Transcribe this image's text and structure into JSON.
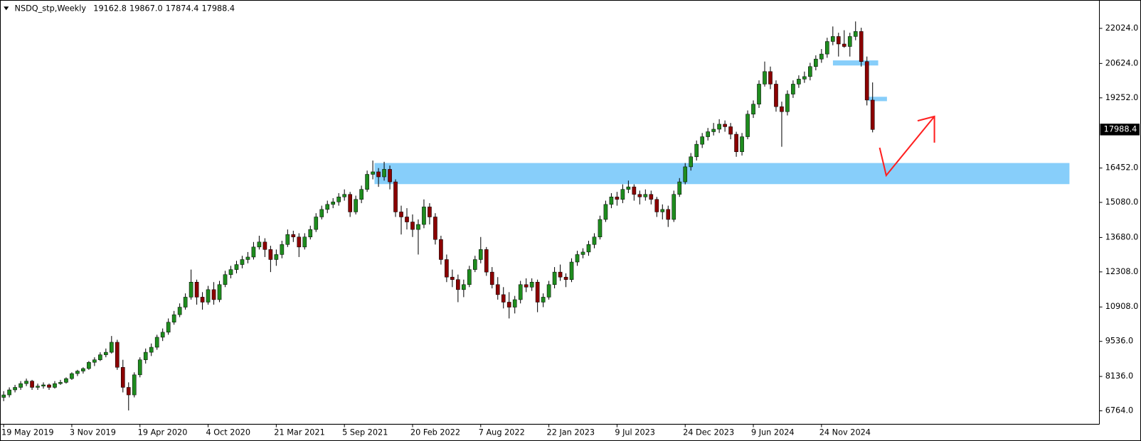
{
  "chart_data": {
    "type": "candlestick",
    "title": "NSDQ_stp,Weekly",
    "last_bar_labels": [
      "19162.8",
      "19867.0",
      "17874.4",
      "17988.4"
    ],
    "bull_color": "#1e8c1e",
    "bear_color": "#8b0000",
    "wick_color": "#000000",
    "ylim": [
      6228,
      23156
    ],
    "yticks": [
      {
        "value": 22024,
        "label": "22024.0"
      },
      {
        "value": 20624,
        "label": "20624.0"
      },
      {
        "value": 19252,
        "label": "19252.0"
      },
      {
        "value": 16452,
        "label": "16452.0"
      },
      {
        "value": 15080,
        "label": "15080.0"
      },
      {
        "value": 13680,
        "label": "13680.0"
      },
      {
        "value": 12308,
        "label": "12308.0"
      },
      {
        "value": 10908,
        "label": "10908.0"
      },
      {
        "value": 9536,
        "label": "9536.0"
      },
      {
        "value": 8136,
        "label": "8136.0"
      },
      {
        "value": 6764,
        "label": "6764.0"
      }
    ],
    "categories": [
      "19 May 2019",
      null,
      null,
      null,
      null,
      null,
      null,
      null,
      null,
      null,
      null,
      null,
      "3 Nov 2019",
      null,
      null,
      null,
      null,
      null,
      null,
      null,
      null,
      null,
      null,
      null,
      "19 Apr 2020",
      null,
      null,
      null,
      null,
      null,
      null,
      null,
      null,
      null,
      null,
      null,
      "4 Oct 2020",
      null,
      null,
      null,
      null,
      null,
      null,
      null,
      null,
      null,
      null,
      null,
      "21 Mar 2021",
      null,
      null,
      null,
      null,
      null,
      null,
      null,
      null,
      null,
      null,
      null,
      "5 Sep 2021",
      null,
      null,
      null,
      null,
      null,
      null,
      null,
      null,
      null,
      null,
      null,
      "20 Feb 2022",
      null,
      null,
      null,
      null,
      null,
      null,
      null,
      null,
      null,
      null,
      null,
      "7 Aug 2022",
      null,
      null,
      null,
      null,
      null,
      null,
      null,
      null,
      null,
      null,
      null,
      "22 Jan 2023",
      null,
      null,
      null,
      null,
      null,
      null,
      null,
      null,
      null,
      null,
      null,
      "9 Jul 2023",
      null,
      null,
      null,
      null,
      null,
      null,
      null,
      null,
      null,
      null,
      null,
      "24 Dec 2023",
      null,
      null,
      null,
      null,
      null,
      null,
      null,
      null,
      null,
      null,
      null,
      "9 Jun 2024",
      null,
      null,
      null,
      null,
      null,
      null,
      null,
      null,
      null,
      null,
      null,
      "24 Nov 2024",
      null,
      null,
      null,
      null,
      null,
      null,
      null,
      null,
      null
    ],
    "ohlc": [
      [
        7300,
        7550,
        7150,
        7400
      ],
      [
        7400,
        7700,
        7300,
        7600
      ],
      [
        7600,
        7800,
        7500,
        7700
      ],
      [
        7700,
        7950,
        7600,
        7850
      ],
      [
        7850,
        8050,
        7750,
        7950
      ],
      [
        7950,
        8000,
        7600,
        7700
      ],
      [
        7700,
        7850,
        7600,
        7750
      ],
      [
        7750,
        7900,
        7650,
        7800
      ],
      [
        7800,
        7850,
        7600,
        7700
      ],
      [
        7700,
        7950,
        7650,
        7850
      ],
      [
        7850,
        8000,
        7800,
        7900
      ],
      [
        7900,
        8100,
        7850,
        8050
      ],
      [
        8050,
        8300,
        8000,
        8250
      ],
      [
        8250,
        8400,
        8150,
        8350
      ],
      [
        8350,
        8500,
        8250,
        8450
      ],
      [
        8450,
        8750,
        8400,
        8700
      ],
      [
        8700,
        8900,
        8550,
        8800
      ],
      [
        8800,
        9100,
        8750,
        9000
      ],
      [
        9000,
        9250,
        8900,
        9100
      ],
      [
        9100,
        9750,
        9050,
        9500
      ],
      [
        9500,
        9600,
        8400,
        8500
      ],
      [
        8500,
        8800,
        7500,
        7700
      ],
      [
        7700,
        7900,
        6780,
        7400
      ],
      [
        7400,
        8300,
        7300,
        8200
      ],
      [
        8200,
        8900,
        8100,
        8800
      ],
      [
        8800,
        9250,
        8650,
        9100
      ],
      [
        9100,
        9450,
        8950,
        9300
      ],
      [
        9300,
        9800,
        9200,
        9700
      ],
      [
        9700,
        10050,
        9550,
        9900
      ],
      [
        9900,
        10450,
        9800,
        10300
      ],
      [
        10300,
        10750,
        10200,
        10600
      ],
      [
        10600,
        11050,
        10500,
        10900
      ],
      [
        10900,
        11450,
        10800,
        11300
      ],
      [
        11300,
        12400,
        11200,
        11900
      ],
      [
        11900,
        12000,
        11000,
        11300
      ],
      [
        11300,
        11500,
        10800,
        11100
      ],
      [
        11100,
        11750,
        11000,
        11600
      ],
      [
        11600,
        11900,
        11000,
        11200
      ],
      [
        11200,
        11950,
        11100,
        11800
      ],
      [
        11800,
        12350,
        11700,
        12200
      ],
      [
        12200,
        12550,
        12050,
        12400
      ],
      [
        12400,
        12750,
        12250,
        12600
      ],
      [
        12600,
        12950,
        12450,
        12800
      ],
      [
        12800,
        13100,
        12650,
        12900
      ],
      [
        12900,
        13500,
        12800,
        13300
      ],
      [
        13300,
        13750,
        13200,
        13500
      ],
      [
        13500,
        13650,
        12900,
        13200
      ],
      [
        13200,
        13350,
        12300,
        12800
      ],
      [
        12800,
        13200,
        12550,
        13000
      ],
      [
        13000,
        13550,
        12850,
        13400
      ],
      [
        13400,
        14000,
        13300,
        13800
      ],
      [
        13800,
        13950,
        13500,
        13700
      ],
      [
        13700,
        13850,
        12900,
        13300
      ],
      [
        13300,
        13850,
        13200,
        13700
      ],
      [
        13700,
        14150,
        13600,
        14000
      ],
      [
        14000,
        14650,
        13900,
        14500
      ],
      [
        14500,
        14950,
        14400,
        14800
      ],
      [
        14800,
        15150,
        14650,
        15000
      ],
      [
        15000,
        15250,
        14850,
        15100
      ],
      [
        15100,
        15450,
        14950,
        15300
      ],
      [
        15300,
        15600,
        15150,
        15400
      ],
      [
        15400,
        15500,
        14500,
        14700
      ],
      [
        14700,
        15350,
        14600,
        15200
      ],
      [
        15200,
        15750,
        15050,
        15600
      ],
      [
        15600,
        16350,
        15500,
        16200
      ],
      [
        16200,
        16750,
        16000,
        16300
      ],
      [
        16300,
        16450,
        15700,
        16100
      ],
      [
        16100,
        16700,
        15950,
        16400
      ],
      [
        16400,
        16550,
        15600,
        15900
      ],
      [
        15900,
        16000,
        14500,
        14700
      ],
      [
        14700,
        14950,
        13800,
        14500
      ],
      [
        14500,
        14850,
        14000,
        14300
      ],
      [
        14300,
        14600,
        13700,
        14000
      ],
      [
        14000,
        14400,
        13000,
        14200
      ],
      [
        14200,
        15200,
        14050,
        14900
      ],
      [
        14900,
        15050,
        14200,
        14500
      ],
      [
        14500,
        14650,
        13400,
        13600
      ],
      [
        13600,
        13750,
        12600,
        12800
      ],
      [
        12800,
        13000,
        11900,
        12100
      ],
      [
        12100,
        12400,
        11700,
        12000
      ],
      [
        12000,
        12200,
        11100,
        11600
      ],
      [
        11600,
        12000,
        11300,
        11800
      ],
      [
        11800,
        12550,
        11700,
        12400
      ],
      [
        12400,
        12950,
        12300,
        12800
      ],
      [
        12800,
        13700,
        12650,
        13200
      ],
      [
        13200,
        13300,
        12150,
        12300
      ],
      [
        12300,
        12500,
        11650,
        11800
      ],
      [
        11800,
        12100,
        11200,
        11400
      ],
      [
        11400,
        11700,
        10850,
        11100
      ],
      [
        11100,
        11500,
        10450,
        10900
      ],
      [
        10900,
        11350,
        10650,
        11200
      ],
      [
        11200,
        11950,
        11050,
        11800
      ],
      [
        11800,
        12050,
        11500,
        11700
      ],
      [
        11700,
        12050,
        11550,
        11900
      ],
      [
        11900,
        12000,
        10700,
        11100
      ],
      [
        11100,
        11450,
        10900,
        11300
      ],
      [
        11300,
        11950,
        11200,
        11800
      ],
      [
        11800,
        12500,
        11650,
        12300
      ],
      [
        12300,
        12600,
        11950,
        12100
      ],
      [
        12100,
        12250,
        11700,
        12000
      ],
      [
        12000,
        12850,
        11900,
        12700
      ],
      [
        12700,
        13150,
        12550,
        13000
      ],
      [
        13000,
        13250,
        12850,
        13100
      ],
      [
        13100,
        13550,
        12950,
        13400
      ],
      [
        13400,
        13850,
        13250,
        13700
      ],
      [
        13700,
        14550,
        13600,
        14400
      ],
      [
        14400,
        15150,
        14300,
        15000
      ],
      [
        15000,
        15450,
        14850,
        15300
      ],
      [
        15300,
        15500,
        14950,
        15200
      ],
      [
        15200,
        15800,
        15050,
        15600
      ],
      [
        15600,
        15950,
        15450,
        15700
      ],
      [
        15700,
        15800,
        15150,
        15400
      ],
      [
        15400,
        15550,
        15000,
        15300
      ],
      [
        15300,
        15600,
        15150,
        15400
      ],
      [
        15400,
        15550,
        15000,
        15200
      ],
      [
        15200,
        15300,
        14500,
        14700
      ],
      [
        14700,
        15000,
        14400,
        14800
      ],
      [
        14800,
        14950,
        14100,
        14400
      ],
      [
        14400,
        15550,
        14300,
        15400
      ],
      [
        15400,
        16050,
        15300,
        15900
      ],
      [
        15900,
        16650,
        15800,
        16500
      ],
      [
        16500,
        17050,
        16350,
        16900
      ],
      [
        16900,
        17550,
        16750,
        17400
      ],
      [
        17400,
        17850,
        17250,
        17700
      ],
      [
        17700,
        18050,
        17550,
        17900
      ],
      [
        17900,
        18250,
        17750,
        18000
      ],
      [
        18000,
        18400,
        17850,
        18200
      ],
      [
        18200,
        18350,
        17900,
        18100
      ],
      [
        18100,
        18250,
        17600,
        17800
      ],
      [
        17800,
        17900,
        16900,
        17100
      ],
      [
        17100,
        17850,
        16950,
        17700
      ],
      [
        17700,
        18750,
        17600,
        18600
      ],
      [
        18600,
        19150,
        18450,
        19000
      ],
      [
        19000,
        19950,
        18850,
        19800
      ],
      [
        19800,
        20700,
        19700,
        20300
      ],
      [
        20300,
        20500,
        19600,
        19800
      ],
      [
        19800,
        19950,
        18700,
        18900
      ],
      [
        18900,
        19100,
        17300,
        18700
      ],
      [
        18700,
        19550,
        18550,
        19400
      ],
      [
        19400,
        19950,
        19250,
        19800
      ],
      [
        19800,
        20150,
        19650,
        20000
      ],
      [
        20000,
        20300,
        19850,
        20100
      ],
      [
        20100,
        20650,
        19950,
        20500
      ],
      [
        20500,
        20950,
        20350,
        20800
      ],
      [
        20800,
        21200,
        20650,
        21000
      ],
      [
        21000,
        21650,
        20850,
        21500
      ],
      [
        21500,
        22100,
        21350,
        21700
      ],
      [
        21700,
        21850,
        20900,
        21400
      ],
      [
        21400,
        21950,
        21250,
        21300
      ],
      [
        21300,
        21850,
        20900,
        21700
      ],
      [
        21700,
        22300,
        21550,
        21900
      ],
      [
        21900,
        22050,
        20500,
        20700
      ],
      [
        20700,
        20900,
        18950,
        19162.8
      ],
      [
        19162.8,
        19867.0,
        17874.4,
        17988.4
      ]
    ]
  }
}
